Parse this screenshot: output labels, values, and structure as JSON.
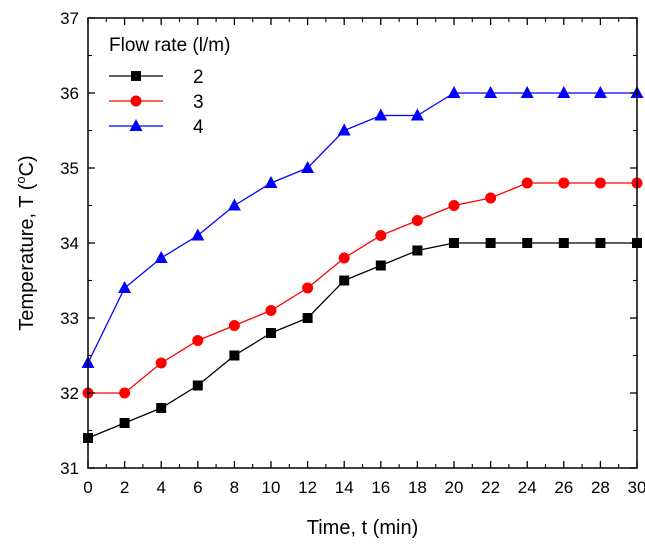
{
  "chart_data": {
    "type": "line",
    "xlabel": "Time, t (min)",
    "ylabel_main": "Temperature, T (",
    "ylabel_sup": "o",
    "ylabel_tail": "C)",
    "xlim": [
      0,
      30
    ],
    "ylim": [
      31,
      37
    ],
    "xticks": [
      0,
      2,
      4,
      6,
      8,
      10,
      12,
      14,
      16,
      18,
      20,
      22,
      24,
      26,
      28,
      30
    ],
    "yticks": [
      31,
      32,
      33,
      34,
      35,
      36,
      37
    ],
    "grid": false,
    "legend": {
      "title": "Flow rate (l/m)",
      "placement": "top-left"
    },
    "x": [
      0,
      2,
      4,
      6,
      8,
      10,
      12,
      14,
      16,
      18,
      20,
      22,
      24,
      26,
      28,
      30
    ],
    "series": [
      {
        "name": "2",
        "color": "#000000",
        "marker": "square",
        "values": [
          31.4,
          31.6,
          31.8,
          32.1,
          32.5,
          32.8,
          33.0,
          33.5,
          33.7,
          33.9,
          34.0,
          34.0,
          34.0,
          34.0,
          34.0,
          34.0
        ]
      },
      {
        "name": "3",
        "color": "#ff0000",
        "marker": "circle",
        "values": [
          32.0,
          32.0,
          32.4,
          32.7,
          32.9,
          33.1,
          33.4,
          33.8,
          34.1,
          34.3,
          34.5,
          34.6,
          34.8,
          34.8,
          34.8,
          34.8
        ]
      },
      {
        "name": "4",
        "color": "#0000ff",
        "marker": "triangle",
        "values": [
          32.4,
          33.4,
          33.8,
          34.1,
          34.5,
          34.8,
          35.0,
          35.5,
          35.7,
          35.7,
          36.0,
          36.0,
          36.0,
          36.0,
          36.0,
          36.0
        ]
      }
    ]
  }
}
